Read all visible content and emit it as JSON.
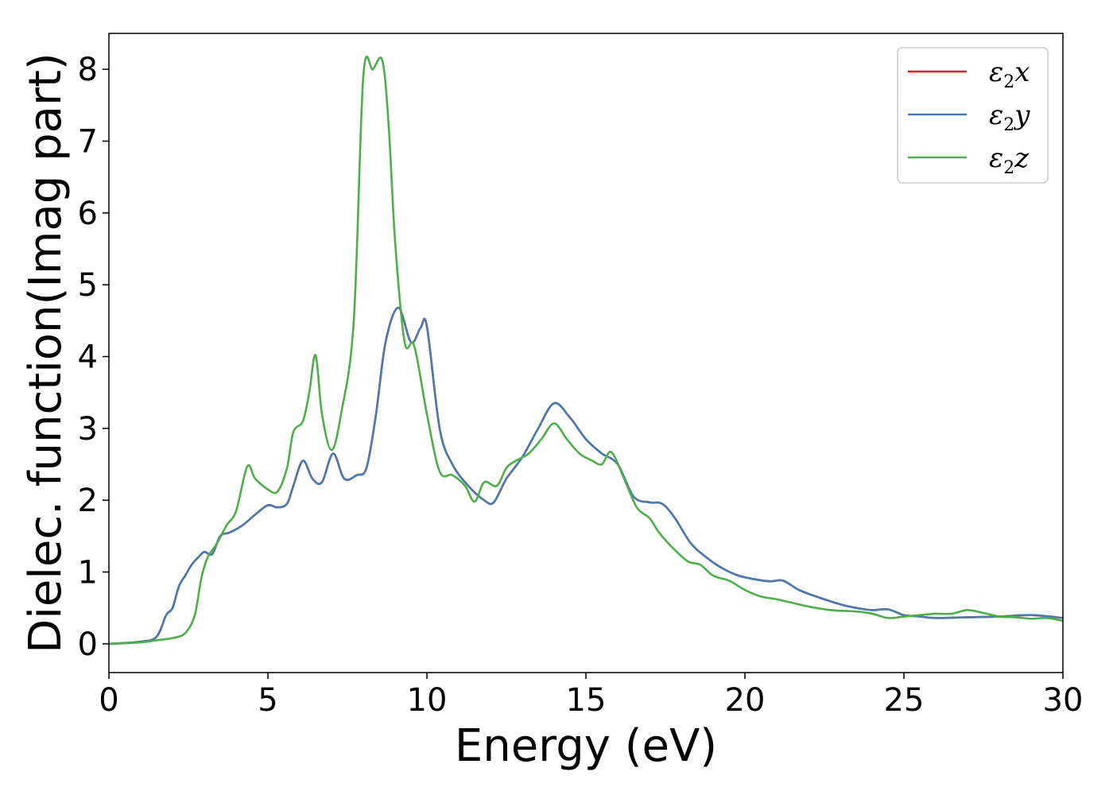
{
  "chart_data": {
    "type": "line",
    "xlabel": "Energy (eV)",
    "ylabel": "Dielec. function(Imag part)",
    "xlim": [
      0,
      30
    ],
    "ylim": [
      -0.4,
      8.5
    ],
    "xticks": [
      0,
      5,
      10,
      15,
      20,
      25,
      30
    ],
    "yticks": [
      0,
      1,
      2,
      3,
      4,
      5,
      6,
      7,
      8
    ],
    "grid": false,
    "legend_position": "top-right",
    "series": [
      {
        "name": "ε2x",
        "name_base": "ε",
        "name_sub": "2",
        "name_suffix": "x",
        "color": "#e41a1c",
        "x": [
          0,
          1,
          1.5,
          1.8,
          2.0,
          2.2,
          2.4,
          2.6,
          2.8,
          3.0,
          3.25,
          3.5,
          3.8,
          4.2,
          4.6,
          5.0,
          5.3,
          5.6,
          5.8,
          6.1,
          6.4,
          6.7,
          7.05,
          7.4,
          7.8,
          8.1,
          8.4,
          8.7,
          9.1,
          9.5,
          9.8,
          10.0,
          10.4,
          10.8,
          11.3,
          11.8,
          12.1,
          12.5,
          13.0,
          13.5,
          14.0,
          14.5,
          15.0,
          15.5,
          16.0,
          16.5,
          17.0,
          17.4,
          17.8,
          18.3,
          18.8,
          19.3,
          19.8,
          20.3,
          20.8,
          21.2,
          21.7,
          22.3,
          23.0,
          23.5,
          24.0,
          24.5,
          25.0,
          25.5,
          26.0,
          27.0,
          28.0,
          29.0,
          30.0
        ],
        "y": [
          0,
          0.03,
          0.1,
          0.4,
          0.5,
          0.8,
          0.95,
          1.1,
          1.2,
          1.28,
          1.25,
          1.5,
          1.55,
          1.65,
          1.8,
          1.93,
          1.9,
          1.95,
          2.2,
          2.55,
          2.3,
          2.25,
          2.65,
          2.3,
          2.35,
          2.45,
          3.2,
          4.2,
          4.68,
          4.2,
          4.4,
          4.42,
          3.0,
          2.5,
          2.2,
          2.0,
          1.97,
          2.3,
          2.6,
          3.0,
          3.35,
          3.15,
          2.85,
          2.65,
          2.5,
          2.05,
          1.97,
          1.95,
          1.75,
          1.4,
          1.2,
          1.05,
          0.95,
          0.9,
          0.87,
          0.88,
          0.75,
          0.65,
          0.55,
          0.5,
          0.47,
          0.48,
          0.4,
          0.38,
          0.36,
          0.37,
          0.38,
          0.4,
          0.36
        ]
      },
      {
        "name": "ε2y",
        "name_base": "ε",
        "name_sub": "2",
        "name_suffix": "y",
        "color": "#4a7bb0",
        "x": [
          0,
          1,
          1.5,
          1.8,
          2.0,
          2.2,
          2.4,
          2.6,
          2.8,
          3.0,
          3.25,
          3.5,
          3.8,
          4.2,
          4.6,
          5.0,
          5.3,
          5.6,
          5.8,
          6.1,
          6.4,
          6.7,
          7.05,
          7.4,
          7.8,
          8.1,
          8.4,
          8.7,
          9.1,
          9.5,
          9.8,
          10.0,
          10.4,
          10.8,
          11.3,
          11.8,
          12.1,
          12.5,
          13.0,
          13.5,
          14.0,
          14.5,
          15.0,
          15.5,
          16.0,
          16.5,
          17.0,
          17.4,
          17.8,
          18.3,
          18.8,
          19.3,
          19.8,
          20.3,
          20.8,
          21.2,
          21.7,
          22.3,
          23.0,
          23.5,
          24.0,
          24.5,
          25.0,
          25.5,
          26.0,
          27.0,
          28.0,
          29.0,
          30.0
        ],
        "y": [
          0,
          0.03,
          0.1,
          0.4,
          0.5,
          0.8,
          0.95,
          1.1,
          1.2,
          1.28,
          1.25,
          1.5,
          1.55,
          1.65,
          1.8,
          1.93,
          1.9,
          1.95,
          2.2,
          2.55,
          2.3,
          2.25,
          2.65,
          2.3,
          2.35,
          2.45,
          3.2,
          4.2,
          4.68,
          4.2,
          4.4,
          4.42,
          3.0,
          2.5,
          2.2,
          2.0,
          1.97,
          2.3,
          2.6,
          3.0,
          3.35,
          3.15,
          2.85,
          2.65,
          2.5,
          2.05,
          1.97,
          1.95,
          1.75,
          1.4,
          1.2,
          1.05,
          0.95,
          0.9,
          0.87,
          0.88,
          0.75,
          0.65,
          0.55,
          0.5,
          0.47,
          0.48,
          0.4,
          0.38,
          0.36,
          0.37,
          0.38,
          0.4,
          0.36
        ]
      },
      {
        "name": "ε2z",
        "name_base": "ε",
        "name_sub": "2",
        "name_suffix": "z",
        "color": "#4daf4a",
        "x": [
          0,
          1,
          1.5,
          2.0,
          2.4,
          2.7,
          2.9,
          3.1,
          3.4,
          3.7,
          4.0,
          4.35,
          4.6,
          5.0,
          5.3,
          5.6,
          5.8,
          6.1,
          6.3,
          6.5,
          6.7,
          7.0,
          7.3,
          7.7,
          8.0,
          8.3,
          8.6,
          8.8,
          9.0,
          9.3,
          9.6,
          10.0,
          10.4,
          10.8,
          11.2,
          11.5,
          11.8,
          12.2,
          12.5,
          12.8,
          13.2,
          13.6,
          14.0,
          14.4,
          14.8,
          15.2,
          15.5,
          15.8,
          16.2,
          16.6,
          17.0,
          17.3,
          17.7,
          18.2,
          18.6,
          19.0,
          19.5,
          20.0,
          20.5,
          21.0,
          21.5,
          22.0,
          22.7,
          23.5,
          24.0,
          24.5,
          25.0,
          25.5,
          26.0,
          26.5,
          27.0,
          27.5,
          28.0,
          28.5,
          29.0,
          29.5,
          30.0
        ],
        "y": [
          0,
          0.02,
          0.05,
          0.08,
          0.15,
          0.4,
          0.9,
          1.2,
          1.4,
          1.65,
          1.85,
          2.47,
          2.3,
          2.15,
          2.12,
          2.45,
          2.95,
          3.1,
          3.5,
          4.02,
          3.2,
          2.7,
          3.2,
          4.5,
          7.9,
          8.0,
          8.12,
          7.2,
          5.6,
          4.2,
          4.15,
          3.2,
          2.4,
          2.35,
          2.2,
          1.98,
          2.25,
          2.2,
          2.45,
          2.55,
          2.65,
          2.85,
          3.07,
          2.85,
          2.65,
          2.55,
          2.5,
          2.67,
          2.3,
          1.9,
          1.75,
          1.55,
          1.35,
          1.15,
          1.1,
          0.95,
          0.88,
          0.75,
          0.66,
          0.62,
          0.57,
          0.52,
          0.47,
          0.45,
          0.42,
          0.36,
          0.38,
          0.4,
          0.42,
          0.42,
          0.47,
          0.43,
          0.38,
          0.37,
          0.35,
          0.36,
          0.32
        ]
      }
    ]
  }
}
